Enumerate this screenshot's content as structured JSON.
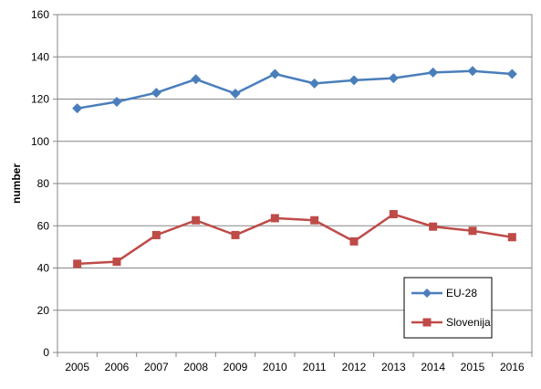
{
  "chart_data": {
    "type": "line",
    "title": "",
    "xlabel": "",
    "ylabel": "number",
    "x": [
      "2005",
      "2006",
      "2007",
      "2008",
      "2009",
      "2010",
      "2011",
      "2012",
      "2013",
      "2014",
      "2015",
      "2016"
    ],
    "ylim": [
      0,
      160
    ],
    "yticks": [
      0,
      20,
      40,
      60,
      80,
      100,
      120,
      140,
      160
    ],
    "grid": true,
    "legend_position": "bottom-right",
    "series": [
      {
        "name": "EU-28",
        "color": "#4a7ebb",
        "marker": "diamond",
        "values": [
          115.6,
          118.7,
          123.0,
          129.4,
          122.6,
          131.9,
          127.4,
          128.9,
          129.9,
          132.6,
          133.3,
          131.9
        ]
      },
      {
        "name": "Slovenija",
        "color": "#be4b48",
        "marker": "square",
        "values": [
          42.0,
          43.0,
          55.6,
          62.6,
          55.6,
          63.6,
          62.6,
          52.6,
          65.5,
          59.6,
          57.6,
          54.6
        ]
      }
    ]
  }
}
